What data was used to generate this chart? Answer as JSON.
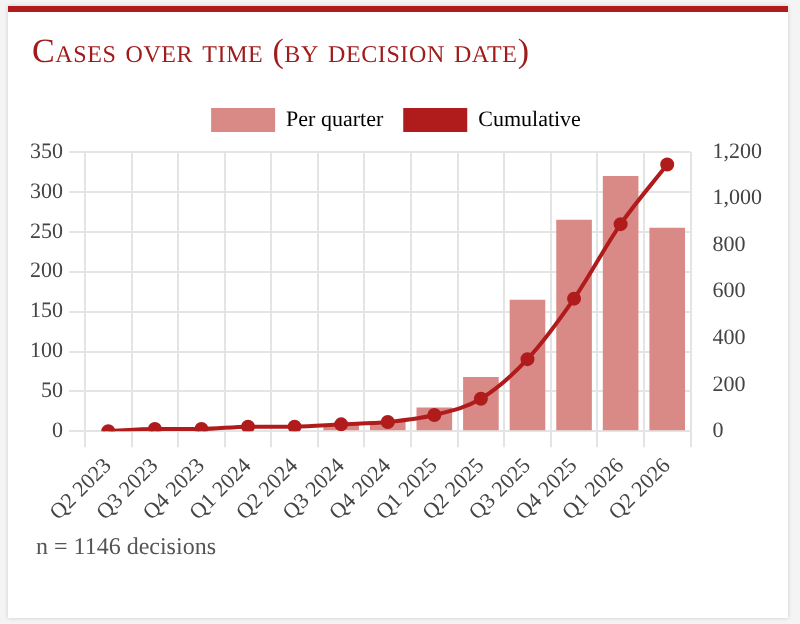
{
  "chart_data": {
    "type": "bar",
    "title": "Cases over time (by decision date)",
    "categories": [
      "Q2 2023",
      "Q3 2023",
      "Q4 2023",
      "Q1 2024",
      "Q2 2024",
      "Q3 2024",
      "Q4 2024",
      "Q1 2025",
      "Q2 2025",
      "Q3 2025",
      "Q4 2025",
      "Q1 2026",
      "Q2 2026"
    ],
    "series": [
      {
        "name": "Per quarter",
        "color": "#d98a86",
        "values": [
          null,
          null,
          null,
          null,
          null,
          9,
          13,
          30,
          68,
          165,
          265,
          320,
          255
        ]
      },
      {
        "name": "Cumulative",
        "type": "line",
        "axis": "y2",
        "color": "#b01c1c",
        "values": [
          0,
          10,
          10,
          20,
          20,
          30,
          40,
          70,
          140,
          310,
          570,
          890,
          1146
        ]
      }
    ],
    "ylim": [
      0,
      350
    ],
    "yticks": [
      0,
      50,
      100,
      150,
      200,
      250,
      300,
      350
    ],
    "y2lim": [
      0,
      1200
    ],
    "y2ticks": [
      0,
      {
        "value": 200,
        "label": "200"
      },
      {
        "value": 400,
        "label": "400"
      },
      {
        "value": 600,
        "label": "600"
      },
      {
        "value": 800,
        "label": "800"
      },
      {
        "value": 1000,
        "label": "1,000"
      },
      {
        "value": 1200,
        "label": "1,200"
      }
    ],
    "grid": true,
    "legend": "top",
    "marker": "circle",
    "line_style": "solid",
    "annotations": [
      "n = 1146 decisions"
    ]
  }
}
